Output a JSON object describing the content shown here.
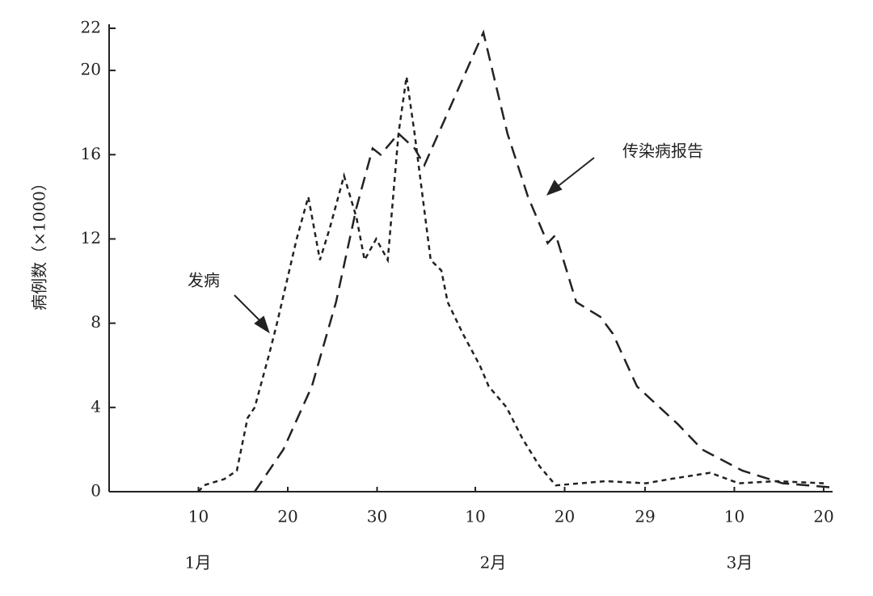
{
  "chart_data": {
    "type": "line",
    "y_label": "病例数（×1000）",
    "months": [
      "1月",
      "2月",
      "3月"
    ],
    "xlim": [
      0,
      81
    ],
    "xticks": [
      10,
      20,
      30,
      {
        "value": 41,
        "label": "10"
      },
      {
        "value": 51,
        "label": "20"
      },
      {
        "value": 60,
        "label": "29"
      },
      {
        "value": 70,
        "label": "10"
      },
      {
        "value": 80,
        "label": "20"
      }
    ],
    "ylim": [
      0,
      22
    ],
    "yticks": [
      0,
      4,
      8,
      12,
      16,
      20,
      22
    ],
    "grid": false,
    "series": [
      {
        "name": "发病",
        "color": "#222222",
        "dash": "6,5",
        "x": [
          10,
          10.6,
          12.9,
          14.3,
          15.5,
          16.3,
          17.9,
          18.8,
          21,
          22.3,
          23.6,
          24.7,
          26.3,
          27.7,
          28.6,
          29.9,
          31.2,
          32.4,
          33.3,
          34.2,
          36,
          37.2,
          37.9,
          39.6,
          41.5,
          42.5,
          44.5,
          46.3,
          48.2,
          50,
          55.6,
          60.1,
          62.8,
          67.3,
          70.5,
          74.7,
          80
        ],
        "values": [
          0,
          0.3,
          0.6,
          1,
          3.5,
          4,
          6.5,
          8,
          12,
          14,
          11,
          12.5,
          15,
          13,
          11,
          12,
          11,
          17,
          19.7,
          17,
          11,
          10.5,
          9,
          7.5,
          6,
          5,
          4,
          2.5,
          1.2,
          0.3,
          0.5,
          0.4,
          0.6,
          0.9,
          0.4,
          0.5,
          0.4
        ]
      },
      {
        "name": "传染病报告",
        "color": "#222222",
        "dash": "16,9",
        "x": [
          16.3,
          19.5,
          22.7,
          25.4,
          27.7,
          29.5,
          30.4,
          32.4,
          34.2,
          35.3,
          37.4,
          41.9,
          44.6,
          46.9,
          49.1,
          50,
          52.3,
          55,
          56.4,
          59.1,
          63.7,
          66.4,
          70.9,
          75.4,
          81
        ],
        "values": [
          0,
          2,
          5,
          9,
          13.5,
          16.3,
          16,
          17,
          16.3,
          15.5,
          17.5,
          21.8,
          17,
          14,
          11.8,
          12.2,
          9,
          8.3,
          7.5,
          5,
          3.2,
          2,
          1,
          0.4,
          0.2
        ]
      }
    ]
  }
}
